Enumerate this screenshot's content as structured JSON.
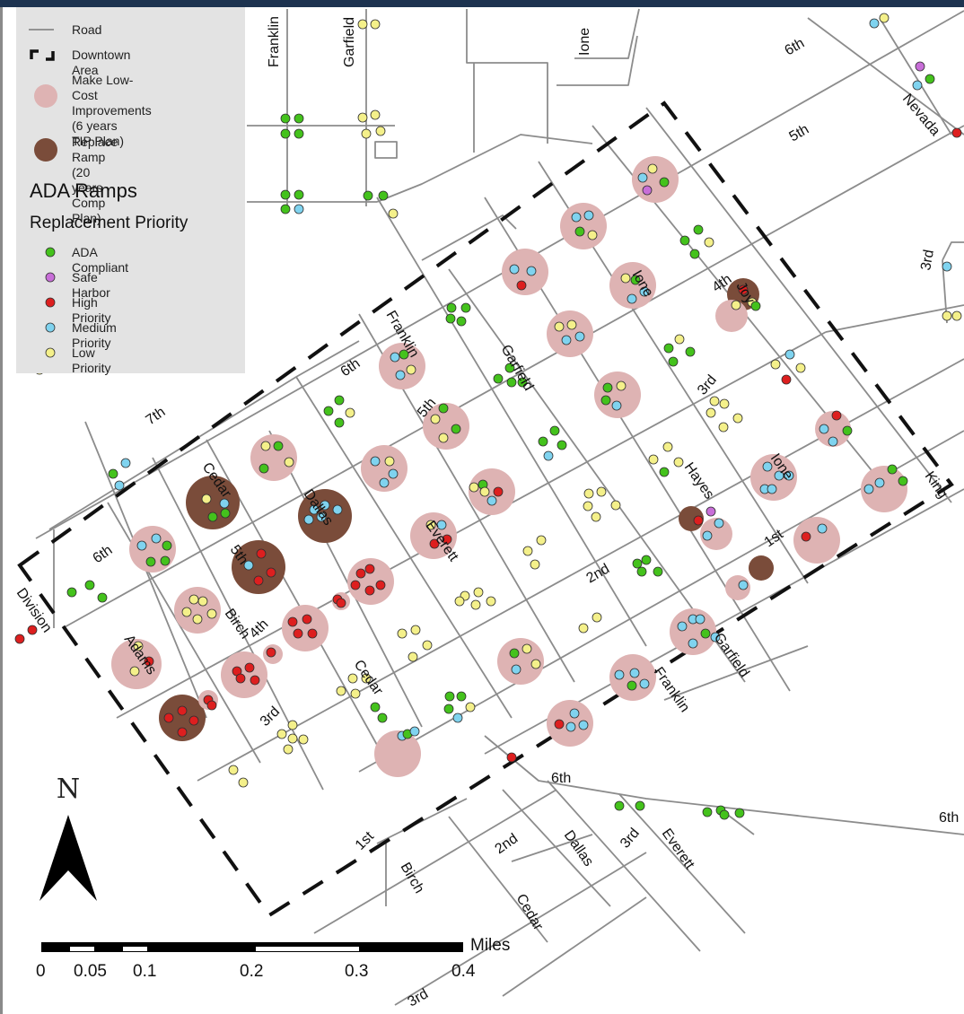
{
  "legend": {
    "road_label": "Road",
    "downtown_label": "Downtown Area",
    "low_cost_label": "Make Low-Cost\nImprovements (6 years\nTIP Plan)",
    "replace_label": "Replace Ramp (20 years\nComp Plan)",
    "title": "ADA Ramps",
    "subtitle": "Replacement Priority",
    "items": [
      {
        "label": "ADA Compliant",
        "color": "#44c21c"
      },
      {
        "label": "Safe Harbor",
        "color": "#c86ed8"
      },
      {
        "label": "High Priority",
        "color": "#dd1f1f"
      },
      {
        "label": "Medium Priority",
        "color": "#7fd3ef"
      },
      {
        "label": "Low Priority",
        "color": "#f4f08a"
      }
    ]
  },
  "colors": {
    "low_cost_circle": "#deb3b3",
    "replace_circle": "#7a4c3a",
    "road": "#8c8c8c",
    "downtown_boundary": "#111111"
  },
  "streets": [
    {
      "id": "franklin-n",
      "name": "Franklin"
    },
    {
      "id": "garfield-n",
      "name": "Garfield"
    },
    {
      "id": "ione-n",
      "name": "Ione"
    },
    {
      "id": "6th-ne",
      "name": "6th"
    },
    {
      "id": "5th-ne",
      "name": "5th"
    },
    {
      "id": "nevada",
      "name": "Nevada"
    },
    {
      "id": "3rd-e",
      "name": "3rd"
    },
    {
      "id": "ione-mid",
      "name": "Ione"
    },
    {
      "id": "4th-mid",
      "name": "4th"
    },
    {
      "id": "joy",
      "name": "Joy"
    },
    {
      "id": "franklin-mid",
      "name": "Franklin"
    },
    {
      "id": "6th-mid",
      "name": "6th"
    },
    {
      "id": "garfield-mid",
      "name": "Garfield"
    },
    {
      "id": "3rd-mid",
      "name": "3rd"
    },
    {
      "id": "5th-mid",
      "name": "5th"
    },
    {
      "id": "7th",
      "name": "7th"
    },
    {
      "id": "hayes",
      "name": "Hayes"
    },
    {
      "id": "ione-s",
      "name": "Ione"
    },
    {
      "id": "king",
      "name": "King"
    },
    {
      "id": "cedar-n",
      "name": "Cedar"
    },
    {
      "id": "dallas-n",
      "name": "Dallas"
    },
    {
      "id": "everett-n",
      "name": "Everett"
    },
    {
      "id": "6th-w",
      "name": "6th"
    },
    {
      "id": "5th-w",
      "name": "5th"
    },
    {
      "id": "1st-e",
      "name": "1st"
    },
    {
      "id": "2nd-mid",
      "name": "2nd"
    },
    {
      "id": "division",
      "name": "Division"
    },
    {
      "id": "adams",
      "name": "Adams"
    },
    {
      "id": "birch-n",
      "name": "Birch"
    },
    {
      "id": "4th-w",
      "name": "4th"
    },
    {
      "id": "cedar-mid",
      "name": "Cedar"
    },
    {
      "id": "garfield-s",
      "name": "Garfield"
    },
    {
      "id": "franklin-s",
      "name": "Franklin"
    },
    {
      "id": "3rd-w",
      "name": "3rd"
    },
    {
      "id": "6th-s",
      "name": "6th"
    },
    {
      "id": "6th-se",
      "name": "6th"
    },
    {
      "id": "1st-s",
      "name": "1st"
    },
    {
      "id": "birch-s",
      "name": "Birch"
    },
    {
      "id": "2nd-s",
      "name": "2nd"
    },
    {
      "id": "dallas-s",
      "name": "Dallas"
    },
    {
      "id": "3rd-s",
      "name": "3rd"
    },
    {
      "id": "everett-s",
      "name": "Everett"
    },
    {
      "id": "cedar-s",
      "name": "Cedar"
    },
    {
      "id": "3rd-bottom",
      "name": "3rd"
    }
  ],
  "north_arrow": {
    "label": "N"
  },
  "scale_bar": {
    "unit": "Miles",
    "ticks": [
      "0",
      "0.05",
      "0.1",
      "0.2",
      "0.3",
      "0.4"
    ]
  }
}
